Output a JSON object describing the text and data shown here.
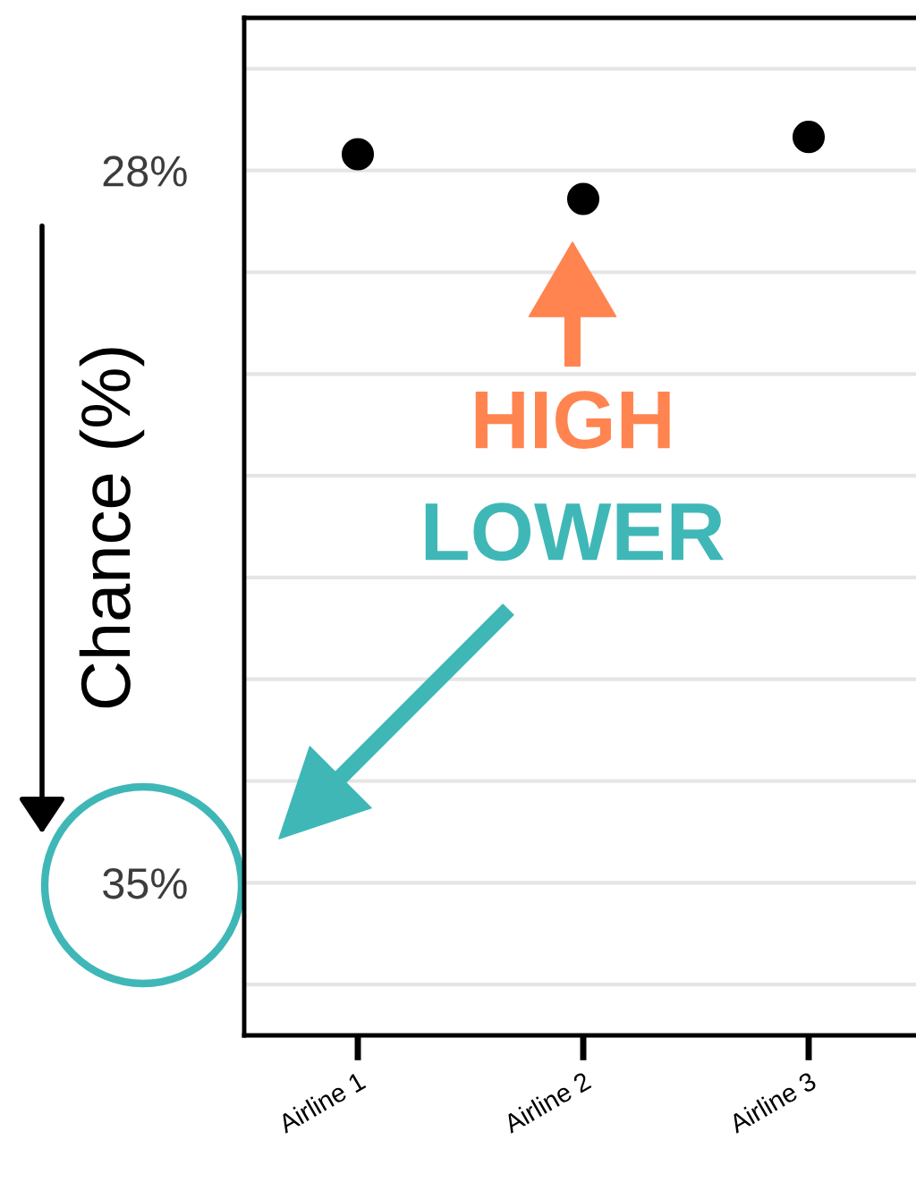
{
  "chart_data": {
    "type": "scatter",
    "ylabel": "Chance (%)",
    "categories": [
      "Airline 1",
      "Airline 2",
      "Airline 3"
    ],
    "values": [
      27.84,
      28.28,
      27.67
    ],
    "color": "#000000",
    "marker": "circle",
    "ylim": [
      36.5,
      26.5
    ],
    "yticks": [
      {
        "value": 27,
        "label": null
      },
      {
        "value": 28,
        "label": "28%"
      },
      {
        "value": 29,
        "label": null
      },
      {
        "value": 30,
        "label": null
      },
      {
        "value": 31,
        "label": null
      },
      {
        "value": 32,
        "label": null
      },
      {
        "value": 33,
        "label": null
      },
      {
        "value": 34,
        "label": null
      },
      {
        "value": 35,
        "label": "35%"
      },
      {
        "value": 36,
        "label": null
      }
    ],
    "grid": "y",
    "annotations": [
      "HIGH",
      "LOWER"
    ]
  }
}
